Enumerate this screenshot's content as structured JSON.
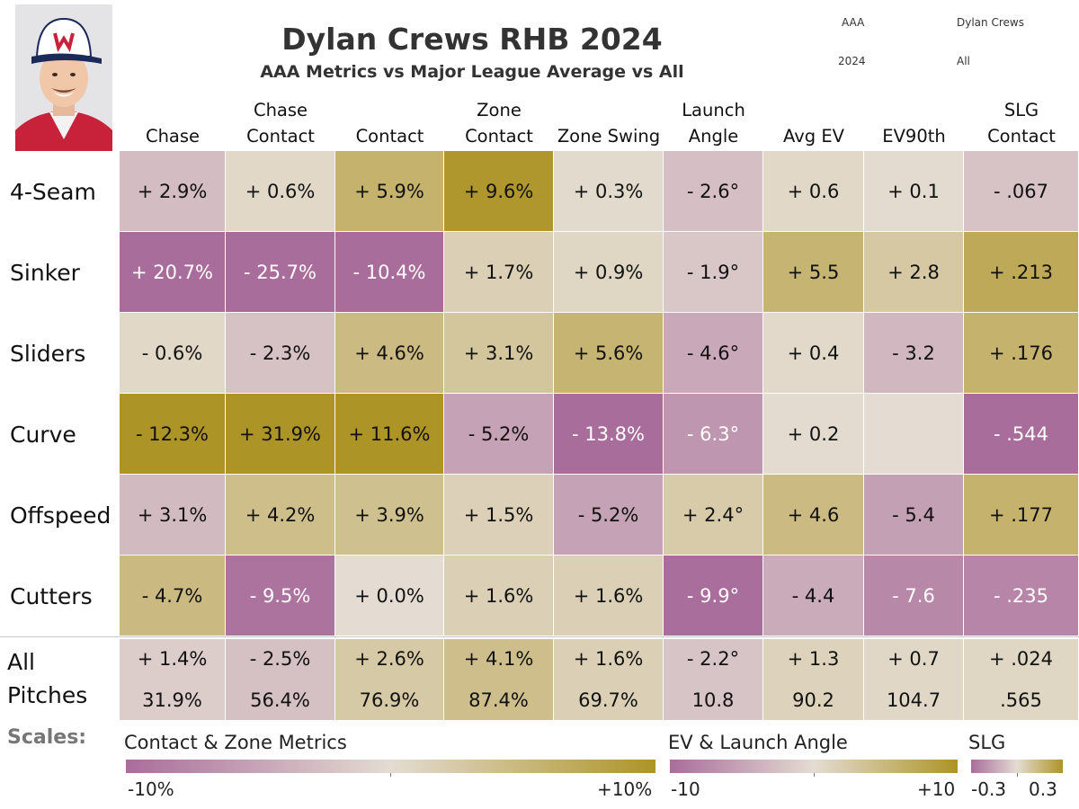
{
  "header": {
    "title": "Dylan Crews RHB 2024",
    "subtitle": "AAA Metrics vs Major League Average vs All",
    "filters": {
      "level": "AAA",
      "player": "Dylan Crews",
      "season": "2024",
      "pitch_filter": "All"
    }
  },
  "colors": {
    "pink_max": "#a96d9b",
    "neutral": "#e4dcd2",
    "gold_max": "#ad9426"
  },
  "chart_data": {
    "type": "heatmap",
    "columns": [
      {
        "id": "chase",
        "label": [
          "Chase"
        ],
        "scale": "pct",
        "max": 10
      },
      {
        "id": "chase_contact",
        "label": [
          "Chase",
          "Contact"
        ],
        "scale": "pct",
        "max": 10
      },
      {
        "id": "contact",
        "label": [
          "Contact"
        ],
        "scale": "pct",
        "max": 10
      },
      {
        "id": "zone_contact",
        "label": [
          "Zone",
          "Contact"
        ],
        "scale": "pct",
        "max": 10
      },
      {
        "id": "zone_swing",
        "label": [
          "Zone Swing"
        ],
        "scale": "pct",
        "max": 10
      },
      {
        "id": "launch_angle",
        "label": [
          "Launch",
          "Angle"
        ],
        "scale": "ev",
        "max": 10
      },
      {
        "id": "avg_ev",
        "label": [
          "Avg EV"
        ],
        "scale": "ev",
        "max": 10
      },
      {
        "id": "ev90th",
        "label": [
          "EV90th"
        ],
        "scale": "ev",
        "max": 10
      },
      {
        "id": "slg_contact",
        "label": [
          "SLG",
          "Contact"
        ],
        "scale": "slg",
        "max": 0.3
      }
    ],
    "rows": [
      {
        "name": "4-Seam",
        "labels": [
          "+ 2.9%",
          "+ 0.6%",
          "+ 5.9%",
          "+ 9.6%",
          "+ 0.3%",
          "- 2.6°",
          "+ 0.6",
          "+ 0.1",
          "- .067"
        ],
        "color_values": [
          -2.9,
          0.6,
          5.9,
          9.6,
          0.3,
          -2.6,
          0.6,
          0.1,
          -0.067
        ]
      },
      {
        "name": "Sinker",
        "labels": [
          "+ 20.7%",
          "- 25.7%",
          "- 10.4%",
          "+ 1.7%",
          "+ 0.9%",
          "- 1.9°",
          "+ 5.5",
          "+ 2.8",
          "+ .213"
        ],
        "color_values": [
          -20.7,
          -25.7,
          -10.4,
          1.7,
          0.9,
          -1.9,
          5.5,
          2.8,
          0.213
        ]
      },
      {
        "name": "Sliders",
        "labels": [
          "- 0.6%",
          "- 2.3%",
          "+ 4.6%",
          "+ 3.1%",
          "+ 5.6%",
          "- 4.6°",
          "+ 0.4",
          "- 3.2",
          "+ .176"
        ],
        "color_values": [
          0.6,
          -2.3,
          4.6,
          3.1,
          5.6,
          -4.6,
          0.4,
          -3.2,
          0.176
        ]
      },
      {
        "name": "Curve",
        "labels": [
          "- 12.3%",
          "+ 31.9%",
          "+ 11.6%",
          "- 5.2%",
          "- 13.8%",
          "- 6.3°",
          "+ 0.2",
          "",
          "- .544"
        ],
        "color_values": [
          12.3,
          31.9,
          11.6,
          -5.2,
          -13.8,
          -6.3,
          0.2,
          0,
          -0.544
        ]
      },
      {
        "name": "Offspeed",
        "labels": [
          "+ 3.1%",
          "+ 4.2%",
          "+ 3.9%",
          "+ 1.5%",
          "- 5.2%",
          "+ 2.4°",
          "+ 4.6",
          "- 5.4",
          "+ .177"
        ],
        "color_values": [
          -3.1,
          4.2,
          3.9,
          1.5,
          -5.2,
          2.4,
          4.6,
          -5.4,
          0.177
        ]
      },
      {
        "name": "Cutters",
        "labels": [
          "- 4.7%",
          "- 9.5%",
          "+ 0.0%",
          "+ 1.6%",
          "+ 1.6%",
          "- 9.9°",
          "- 4.4",
          "- 7.6",
          "- .235"
        ],
        "color_values": [
          4.7,
          -9.5,
          0.0,
          1.6,
          1.6,
          -9.9,
          -4.4,
          -7.6,
          -0.235
        ]
      }
    ],
    "all_pitches": {
      "name": [
        "All",
        "Pitches"
      ],
      "diff_labels": [
        "+ 1.4%",
        "- 2.5%",
        "+ 2.6%",
        "+ 4.1%",
        "+ 1.6%",
        "- 2.2°",
        "+ 1.3",
        "+ 0.7",
        "+ .024"
      ],
      "value_labels": [
        "31.9%",
        "56.4%",
        "76.9%",
        "87.4%",
        "69.7%",
        "10.8",
        "90.2",
        "104.7",
        ".565"
      ],
      "color_values": [
        -1.4,
        -2.5,
        2.6,
        4.1,
        1.6,
        -2.2,
        1.3,
        0.7,
        0.024
      ]
    }
  },
  "legend": {
    "heading": "Scales:",
    "items": [
      {
        "title": "Contact & Zone Metrics",
        "min_label": "-10%",
        "max_label": "+10%"
      },
      {
        "title": "EV & Launch Angle",
        "min_label": "-10",
        "max_label": "+10"
      },
      {
        "title": "SLG",
        "min_label": "-0.3",
        "max_label": "0.3"
      }
    ]
  }
}
